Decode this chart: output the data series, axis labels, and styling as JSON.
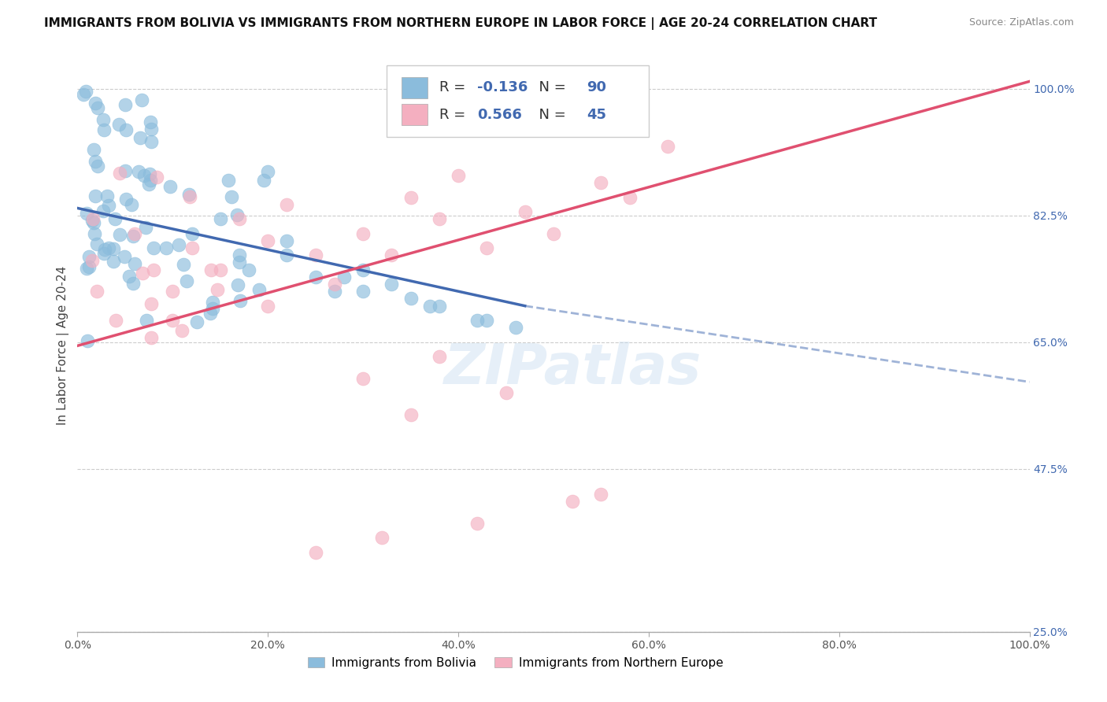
{
  "title": "IMMIGRANTS FROM BOLIVIA VS IMMIGRANTS FROM NORTHERN EUROPE IN LABOR FORCE | AGE 20-24 CORRELATION CHART",
  "source": "Source: ZipAtlas.com",
  "ylabel": "In Labor Force | Age 20-24",
  "x_min": 0.0,
  "x_max": 1.0,
  "y_min": 0.25,
  "y_max": 1.04,
  "x_ticks": [
    0.0,
    0.2,
    0.4,
    0.6,
    0.8,
    1.0
  ],
  "x_tick_labels": [
    "0.0%",
    "20.0%",
    "40.0%",
    "60.0%",
    "80.0%",
    "100.0%"
  ],
  "y_ticks": [
    0.25,
    0.475,
    0.65,
    0.825,
    1.0
  ],
  "y_tick_labels": [
    "25.0%",
    "47.5%",
    "65.0%",
    "82.5%",
    "100.0%"
  ],
  "bolivia_R": -0.136,
  "bolivia_N": 90,
  "northern_R": 0.566,
  "northern_N": 45,
  "bolivia_color": "#8bbcdc",
  "northern_color": "#f4afc0",
  "bolivia_line_color": "#4169b0",
  "northern_line_color": "#e05070",
  "background_color": "#ffffff",
  "grid_color": "#cccccc",
  "watermark": "ZIPatlas",
  "title_fontsize": 11,
  "axis_label_fontsize": 11,
  "tick_fontsize": 10,
  "blue_line_start_x": 0.0,
  "blue_line_start_y": 0.835,
  "blue_line_solid_end_x": 0.47,
  "blue_line_solid_end_y": 0.7,
  "blue_line_dash_end_x": 1.0,
  "blue_line_dash_end_y": 0.595,
  "pink_line_start_x": 0.0,
  "pink_line_start_y": 0.645,
  "pink_line_end_x": 1.0,
  "pink_line_end_y": 1.01
}
